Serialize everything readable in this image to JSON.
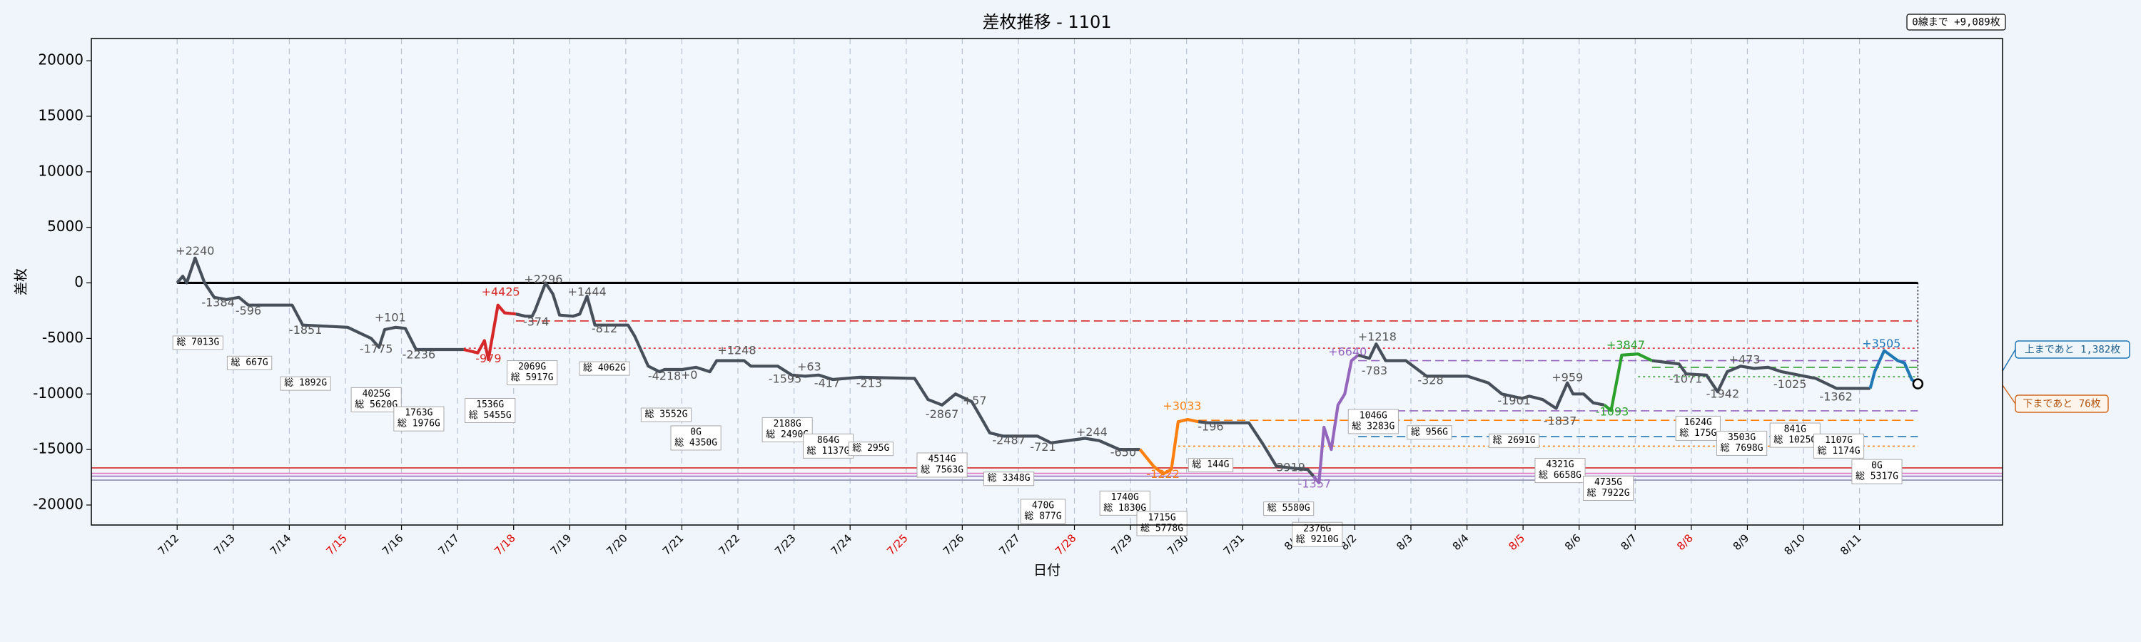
{
  "chart_data": {
    "type": "line",
    "title": "差枚推移 - 1101",
    "xlabel": "日付",
    "ylabel": "差枚",
    "summary": "0線まで +9,089枚",
    "upper_note": "上まであと 1,382枚",
    "lower_note": "下まであと 76枚",
    "xlim": [
      -1.53,
      32.55
    ],
    "ylim": [
      -21800,
      22000
    ],
    "xticks": [
      {
        "value": 0,
        "label": "7/12"
      },
      {
        "value": 1,
        "label": "7/13"
      },
      {
        "value": 2,
        "label": "7/14"
      },
      {
        "value": 3,
        "label": "7/15"
      },
      {
        "value": 4,
        "label": "7/16"
      },
      {
        "value": 5,
        "label": "7/17"
      },
      {
        "value": 6,
        "label": "7/18"
      },
      {
        "value": 7,
        "label": "7/19"
      },
      {
        "value": 8,
        "label": "7/20"
      },
      {
        "value": 9,
        "label": "7/21"
      },
      {
        "value": 10,
        "label": "7/22"
      },
      {
        "value": 11,
        "label": "7/23"
      },
      {
        "value": 12,
        "label": "7/24"
      },
      {
        "value": 13,
        "label": "7/25"
      },
      {
        "value": 14,
        "label": "7/26"
      },
      {
        "value": 15,
        "label": "7/27"
      },
      {
        "value": 16,
        "label": "7/28"
      },
      {
        "value": 17,
        "label": "7/29"
      },
      {
        "value": 18,
        "label": "7/30"
      },
      {
        "value": 19,
        "label": "7/31"
      },
      {
        "value": 20,
        "label": "8/1"
      },
      {
        "value": 21,
        "label": "8/2"
      },
      {
        "value": 22,
        "label": "8/3"
      },
      {
        "value": 23,
        "label": "8/4"
      },
      {
        "value": 24,
        "label": "8/5"
      },
      {
        "value": 25,
        "label": "8/6"
      },
      {
        "value": 26,
        "label": "8/7"
      },
      {
        "value": 27,
        "label": "8/8"
      },
      {
        "value": 28,
        "label": "8/9"
      },
      {
        "value": 29,
        "label": "8/10"
      },
      {
        "value": 30,
        "label": "8/11"
      }
    ],
    "xtick_colors": [
      "#000",
      "#000",
      "#000",
      "#e00000",
      "#000",
      "#000",
      "#e00000",
      "#000",
      "#000",
      "#000",
      "#000",
      "#000",
      "#000",
      "#e00000",
      "#000",
      "#000",
      "#e00000",
      "#000",
      "#000",
      "#000",
      "#000",
      "#000",
      "#000",
      "#000",
      "#e00000",
      "#000",
      "#000",
      "#e00000",
      "#000",
      "#000",
      "#000"
    ],
    "yticks": [
      -20000,
      -15000,
      -10000,
      -5000,
      0,
      5000,
      10000,
      15000,
      20000
    ],
    "xgrid": true,
    "series": [
      {
        "color": "#474f5a",
        "x": [
          0,
          0.1,
          0.17,
          0.32,
          0.49,
          0.66,
          0.88,
          1.1,
          1.27,
          2.05,
          2.24,
          3.04,
          3.46,
          3.6,
          3.7,
          3.9,
          4.07,
          4.26,
          5.11
        ],
        "values": [
          0,
          600,
          0,
          2240,
          0,
          -1300,
          -1500,
          -1300,
          -2000,
          -2000,
          -3800,
          -4000,
          -5000,
          -5800,
          -4200,
          -4000,
          -4100,
          -6000,
          -6000
        ]
      },
      {
        "color": "#d62728",
        "x": [
          5.11,
          5.36,
          5.48,
          5.55,
          5.72,
          5.84,
          6.04
        ],
        "values": [
          -6000,
          -6300,
          -5200,
          -6900,
          -2000,
          -2700,
          -2800
        ]
      },
      {
        "color": "#474f5a",
        "x": [
          6.04,
          6.21,
          6.33,
          6.38,
          6.57,
          6.7,
          6.82,
          7.06,
          7.18,
          7.31,
          7.45,
          8.04,
          8.16,
          8.4,
          8.6,
          8.69,
          9.01,
          9.25,
          9.5,
          9.62,
          10.11,
          10.23,
          10.71,
          10.96,
          11.2,
          11.44,
          11.69,
          12.18,
          13.15,
          13.39,
          13.64,
          13.88,
          14.17,
          14.32,
          14.49,
          14.73,
          15.34,
          15.58,
          16.19,
          16.44,
          16.8,
          17.17
        ],
        "values": [
          -2800,
          -3000,
          -3000,
          -2500,
          0,
          -1000,
          -2900,
          -3000,
          -2800,
          -1200,
          -3800,
          -3800,
          -4800,
          -7500,
          -8000,
          -7800,
          -7800,
          -7600,
          -8000,
          -7000,
          -7000,
          -7500,
          -7500,
          -8300,
          -8400,
          -8300,
          -8700,
          -8500,
          -8600,
          -10500,
          -11000,
          -10000,
          -10700,
          -12000,
          -13500,
          -13800,
          -13800,
          -14400,
          -14000,
          -14200,
          -15000,
          -15000
        ]
      },
      {
        "color": "#ff7f0e",
        "x": [
          17.17,
          17.41,
          17.58,
          17.73,
          17.85,
          18.02,
          18.21
        ],
        "values": [
          -15000,
          -16500,
          -17200,
          -16800,
          -12500,
          -12300,
          -12500
        ]
      },
      {
        "color": "#474f5a",
        "x": [
          18.21,
          18.38,
          19.11,
          19.36,
          19.6,
          19.92,
          20.16,
          20.26
        ],
        "values": [
          -12500,
          -12600,
          -12600,
          -14500,
          -16500,
          -16700,
          -16800,
          -17400
        ]
      },
      {
        "color": "#9467bd",
        "x": [
          20.26,
          20.36,
          20.45,
          20.58,
          20.7,
          20.82,
          20.94,
          21.06
        ],
        "values": [
          -17400,
          -18000,
          -13000,
          -15000,
          -11000,
          -10000,
          -7000,
          -6500
        ]
      },
      {
        "color": "#474f5a",
        "x": [
          21.06,
          21.26,
          21.38,
          21.55,
          21.91,
          22.28,
          23.01,
          23.38,
          23.62,
          23.98,
          24.11,
          24.35,
          24.59,
          24.79,
          24.89,
          25.08,
          25.25,
          25.45
        ],
        "values": [
          -6500,
          -6800,
          -5500,
          -7000,
          -7000,
          -8400,
          -8400,
          -9000,
          -10000,
          -10400,
          -10200,
          -10500,
          -11300,
          -9000,
          -10000,
          -10000,
          -10800,
          -11000
        ]
      },
      {
        "color": "#2ca02c",
        "x": [
          25.45,
          25.57,
          25.76,
          26.05,
          26.3
        ],
        "values": [
          -11000,
          -11500,
          -6500,
          -6400,
          -7000
        ]
      },
      {
        "color": "#474f5a",
        "x": [
          26.3,
          26.78,
          26.91,
          27.27,
          27.47,
          27.64,
          27.88,
          28.12,
          28.37,
          28.61,
          29.22,
          29.59,
          30.19
        ],
        "values": [
          -7000,
          -7300,
          -8200,
          -8300,
          -9800,
          -8000,
          -7500,
          -7700,
          -7600,
          -8000,
          -8600,
          -9500,
          -9500
        ]
      },
      {
        "color": "#1f77b4",
        "x": [
          30.19,
          30.27,
          30.44,
          30.68,
          30.8,
          30.93,
          31.04
        ],
        "values": [
          -9500,
          -8000,
          -6100,
          -7000,
          -7200,
          -8700,
          -9089
        ]
      }
    ],
    "end_point": {
      "x": 31.04,
      "y": -9089
    },
    "ref_lines": [
      {
        "y": 0,
        "x0": 0,
        "x1": 31.04,
        "color": "#000000",
        "style": "solid"
      },
      {
        "y": -3430,
        "x0": 6.04,
        "x1": 31.04,
        "color": "#d62728",
        "style": "dashed"
      },
      {
        "y": -5880,
        "x0": 5.11,
        "x1": 31.04,
        "color": "#d62728",
        "style": "dotted"
      },
      {
        "y": -12370,
        "x0": 18.21,
        "x1": 31.04,
        "color": "#ff7f0e",
        "style": "dashed"
      },
      {
        "y": -14700,
        "x0": 17.85,
        "x1": 31.04,
        "color": "#ff7f0e",
        "style": "dotted"
      },
      {
        "y": -7000,
        "x0": 21.06,
        "x1": 31.04,
        "color": "#9467bd",
        "style": "dashed"
      },
      {
        "y": -11520,
        "x0": 21.06,
        "x1": 31.04,
        "color": "#9467bd",
        "style": "dashed"
      },
      {
        "y": -7600,
        "x0": 26.3,
        "x1": 31.04,
        "color": "#2ca02c",
        "style": "dashed"
      },
      {
        "y": -8450,
        "x0": 26.05,
        "x1": 31.04,
        "color": "#2ca02c",
        "style": "dotted"
      },
      {
        "y": -13840,
        "x0": 21.06,
        "x1": 31.04,
        "color": "#1f77b4",
        "style": "dashed"
      },
      {
        "y": -16660,
        "color": "#d62728",
        "style": "solid"
      },
      {
        "y": -17150,
        "color": "#e377c2",
        "style": "solid"
      },
      {
        "y": -17400,
        "color": "#9467bd",
        "style": "solid"
      },
      {
        "y": -17760,
        "color": "#8c8cb0",
        "style": "solid"
      }
    ],
    "annotations": [
      {
        "x": 0.32,
        "y": 2820,
        "label": "+2240"
      },
      {
        "x": 0.73,
        "y": -1840,
        "label": "-1384"
      },
      {
        "x": 1.27,
        "y": -2570,
        "label": "-596"
      },
      {
        "x": 2.29,
        "y": -4290,
        "label": "-1851"
      },
      {
        "x": 3.8,
        "y": -3190,
        "label": "+101"
      },
      {
        "x": 3.55,
        "y": -6000,
        "label": "-1775"
      },
      {
        "x": 4.31,
        "y": -6500,
        "label": "-2236"
      },
      {
        "x": 5.77,
        "y": -860,
        "label": "+4425",
        "color": "#d62728"
      },
      {
        "x": 5.55,
        "y": -6860,
        "label": "-979",
        "color": "#d62728"
      },
      {
        "x": 6.4,
        "y": -3550,
        "label": "-374"
      },
      {
        "x": 6.53,
        "y": 250,
        "label": "+2296"
      },
      {
        "x": 7.31,
        "y": -860,
        "label": "+1444"
      },
      {
        "x": 7.62,
        "y": -4170,
        "label": "-812"
      },
      {
        "x": 8.69,
        "y": -8450,
        "label": "-4218"
      },
      {
        "x": 9.13,
        "y": -8330,
        "label": "+0"
      },
      {
        "x": 9.98,
        "y": -6130,
        "label": "+1248"
      },
      {
        "x": 10.84,
        "y": -8700,
        "label": "-1595"
      },
      {
        "x": 11.27,
        "y": -7600,
        "label": "+63"
      },
      {
        "x": 11.59,
        "y": -9070,
        "label": "-417"
      },
      {
        "x": 12.34,
        "y": -9070,
        "label": "-213"
      },
      {
        "x": 13.64,
        "y": -11880,
        "label": "-2867"
      },
      {
        "x": 14.22,
        "y": -10660,
        "label": "+57"
      },
      {
        "x": 14.83,
        "y": -14210,
        "label": "-2487"
      },
      {
        "x": 15.44,
        "y": -14820,
        "label": "-721"
      },
      {
        "x": 16.31,
        "y": -13480,
        "label": "+244"
      },
      {
        "x": 16.87,
        "y": -15310,
        "label": "-650"
      },
      {
        "x": 17.92,
        "y": -11150,
        "label": "+3033",
        "color": "#ff7f0e"
      },
      {
        "x": 17.58,
        "y": -17270,
        "label": "-1222",
        "color": "#ff7f0e"
      },
      {
        "x": 18.43,
        "y": -12990,
        "label": "-196"
      },
      {
        "x": 19.82,
        "y": -16660,
        "label": "-3919"
      },
      {
        "x": 20.28,
        "y": -18130,
        "label": "-1357",
        "color": "#9467bd"
      },
      {
        "x": 20.87,
        "y": -6250,
        "label": "+6640",
        "color": "#9467bd"
      },
      {
        "x": 21.4,
        "y": -4900,
        "label": "+1218"
      },
      {
        "x": 21.35,
        "y": -7960,
        "label": "-783"
      },
      {
        "x": 22.35,
        "y": -8820,
        "label": "-328"
      },
      {
        "x": 23.84,
        "y": -10660,
        "label": "-1901"
      },
      {
        "x": 24.66,
        "y": -12500,
        "label": "-1837"
      },
      {
        "x": 24.79,
        "y": -8580,
        "label": "+959"
      },
      {
        "x": 25.59,
        "y": -11640,
        "label": "-1093",
        "color": "#2ca02c"
      },
      {
        "x": 25.83,
        "y": -5640,
        "label": "+3847",
        "color": "#2ca02c"
      },
      {
        "x": 26.9,
        "y": -8700,
        "label": "-1071"
      },
      {
        "x": 27.56,
        "y": -10050,
        "label": "-1942"
      },
      {
        "x": 27.95,
        "y": -6980,
        "label": "+473"
      },
      {
        "x": 28.76,
        "y": -9190,
        "label": "-1025"
      },
      {
        "x": 29.58,
        "y": -10290,
        "label": "-1362"
      },
      {
        "x": 30.39,
        "y": -5510,
        "label": "+3505",
        "color": "#1f77b4"
      }
    ],
    "boxes": [
      {
        "x": 0.37,
        "y": -4780,
        "lines": [
          "総 7013G"
        ]
      },
      {
        "x": 1.29,
        "y": -6600,
        "lines": [
          "総 667G"
        ]
      },
      {
        "x": 2.29,
        "y": -8450,
        "lines": [
          "総 1892G"
        ]
      },
      {
        "x": 3.55,
        "y": -9430,
        "lines": [
          "4025G",
          "総 5620G"
        ]
      },
      {
        "x": 4.31,
        "y": -11150,
        "lines": [
          "1763G",
          "総 1976G"
        ]
      },
      {
        "x": 5.58,
        "y": -10400,
        "lines": [
          "1536G",
          "総 5455G"
        ]
      },
      {
        "x": 6.33,
        "y": -7000,
        "lines": [
          "2069G",
          "総 5917G"
        ]
      },
      {
        "x": 7.62,
        "y": -7100,
        "lines": [
          "総 4062G"
        ]
      },
      {
        "x": 8.72,
        "y": -11270,
        "lines": [
          "総 3552G"
        ]
      },
      {
        "x": 9.25,
        "y": -12870,
        "lines": [
          "0G",
          "総 4350G"
        ]
      },
      {
        "x": 10.88,
        "y": -12130,
        "lines": [
          "2188G",
          "総 2490G"
        ]
      },
      {
        "x": 11.61,
        "y": -13600,
        "lines": [
          "864G",
          "総 1137G"
        ]
      },
      {
        "x": 12.37,
        "y": -14330,
        "lines": [
          "総 295G"
        ]
      },
      {
        "x": 13.64,
        "y": -15310,
        "lines": [
          "4514G",
          "総 7563G"
        ]
      },
      {
        "x": 14.83,
        "y": -17030,
        "lines": [
          "総 3348G"
        ]
      },
      {
        "x": 15.44,
        "y": -19480,
        "lines": [
          "470G",
          "総 877G"
        ]
      },
      {
        "x": 16.9,
        "y": -18740,
        "lines": [
          "1740G",
          "総 1830G"
        ]
      },
      {
        "x": 17.56,
        "y": -20580,
        "lines": [
          "1715G",
          "総 5778G"
        ]
      },
      {
        "x": 18.43,
        "y": -15800,
        "lines": [
          "総 144G"
        ]
      },
      {
        "x": 19.82,
        "y": -19720,
        "lines": [
          "総 5580G"
        ]
      },
      {
        "x": 20.33,
        "y": -21560,
        "lines": [
          "2376G",
          "総 9210G"
        ]
      },
      {
        "x": 21.33,
        "y": -11390,
        "lines": [
          "1046G",
          "総 3283G"
        ]
      },
      {
        "x": 22.33,
        "y": -12860,
        "lines": [
          "総 956G"
        ]
      },
      {
        "x": 23.84,
        "y": -13600,
        "lines": [
          "総 2691G"
        ]
      },
      {
        "x": 24.66,
        "y": -15800,
        "lines": [
          "4321G",
          "総 6658G"
        ]
      },
      {
        "x": 25.52,
        "y": -17400,
        "lines": [
          "4735G",
          "総 7922G"
        ]
      },
      {
        "x": 27.12,
        "y": -12000,
        "lines": [
          "1624G",
          "総 175G"
        ]
      },
      {
        "x": 27.9,
        "y": -13350,
        "lines": [
          "3503G",
          "総 7698G"
        ]
      },
      {
        "x": 28.85,
        "y": -12620,
        "lines": [
          "841G",
          "総 1025G"
        ]
      },
      {
        "x": 29.63,
        "y": -13600,
        "lines": [
          "1107G",
          "総 1174G"
        ]
      },
      {
        "x": 30.31,
        "y": -15900,
        "lines": [
          "0G",
          "総 5317G"
        ]
      }
    ]
  }
}
